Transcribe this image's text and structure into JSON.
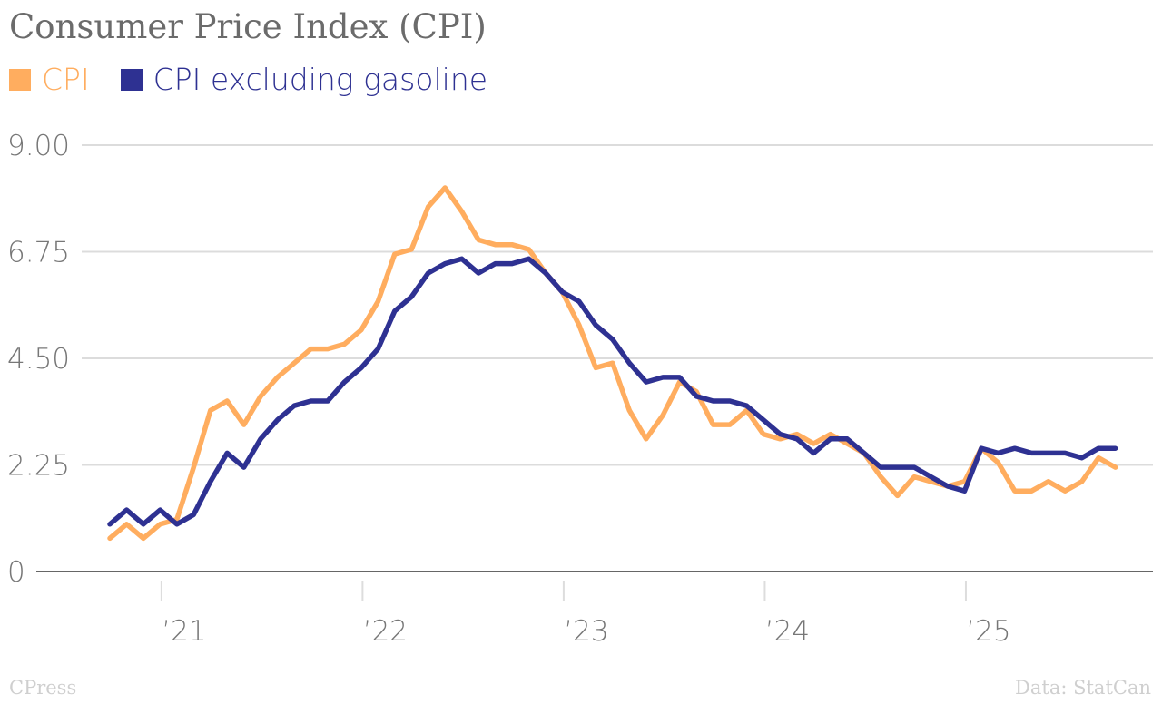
{
  "chart_data": {
    "type": "line",
    "title": "Consumer Price Index (CPI)",
    "x_start": "2020-10",
    "x_frequency": "monthly",
    "x_tick_labels": [
      "’21",
      "’22",
      "’23",
      "’24",
      "’25"
    ],
    "y_tick_labels": [
      "0",
      "2.25",
      "4.50",
      "6.75",
      "9.00"
    ],
    "y_ticks": [
      0,
      2.25,
      4.5,
      6.75,
      9
    ],
    "ylim": [
      0,
      9
    ],
    "grid": true,
    "legend": "top-left",
    "series": [
      {
        "name": "CPI",
        "color": "#FFAD5F",
        "values": [
          0.7,
          1.0,
          0.7,
          1.0,
          1.1,
          2.2,
          3.4,
          3.6,
          3.1,
          3.7,
          4.1,
          4.4,
          4.7,
          4.7,
          4.8,
          5.1,
          5.7,
          6.7,
          6.8,
          7.7,
          8.1,
          7.6,
          7.0,
          6.9,
          6.9,
          6.8,
          6.3,
          5.9,
          5.2,
          4.3,
          4.4,
          3.4,
          2.8,
          3.3,
          4.0,
          3.8,
          3.1,
          3.1,
          3.4,
          2.9,
          2.8,
          2.9,
          2.7,
          2.9,
          2.7,
          2.5,
          2.0,
          1.6,
          2.0,
          1.9,
          1.8,
          1.9,
          2.6,
          2.3,
          1.7,
          1.7,
          1.9,
          1.7,
          1.9,
          2.4,
          2.2
        ]
      },
      {
        "name": "CPI excluding gasoline",
        "color": "#2E3192",
        "values": [
          1.0,
          1.3,
          1.0,
          1.3,
          1.0,
          1.2,
          1.9,
          2.5,
          2.2,
          2.8,
          3.2,
          3.5,
          3.6,
          3.6,
          4.0,
          4.3,
          4.7,
          5.5,
          5.8,
          6.3,
          6.5,
          6.6,
          6.3,
          6.5,
          6.5,
          6.6,
          6.3,
          5.9,
          5.7,
          5.2,
          4.9,
          4.4,
          4.0,
          4.1,
          4.1,
          3.7,
          3.6,
          3.6,
          3.5,
          3.2,
          2.9,
          2.8,
          2.5,
          2.8,
          2.8,
          2.5,
          2.2,
          2.2,
          2.2,
          2.0,
          1.8,
          1.7,
          2.6,
          2.5,
          2.6,
          2.5,
          2.5,
          2.5,
          2.4,
          2.6,
          2.6
        ]
      }
    ]
  },
  "footer": {
    "brand": "CPress",
    "source": "Data: StatCan"
  }
}
